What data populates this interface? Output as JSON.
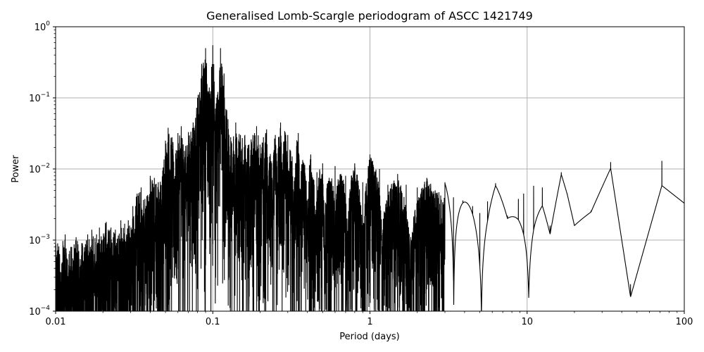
{
  "chart_data": {
    "type": "line",
    "title": "Generalised Lomb-Scargle periodogram of ASCC 1421749",
    "xlabel": "Period (days)",
    "ylabel": "Power",
    "xscale": "log",
    "yscale": "log",
    "xlim": [
      0.01,
      100
    ],
    "ylim": [
      0.0001,
      1
    ],
    "grid": true,
    "line_color": "#000000",
    "x_ticks": [
      {
        "value": 0.01,
        "label": "0.01"
      },
      {
        "value": 0.1,
        "label": "0.1"
      },
      {
        "value": 1,
        "label": "1"
      },
      {
        "value": 10,
        "label": "10"
      },
      {
        "value": 100,
        "label": "100"
      }
    ],
    "y_ticks": [
      {
        "value": 0.0001,
        "base": "10",
        "exp": "−4"
      },
      {
        "value": 0.001,
        "base": "10",
        "exp": "−3"
      },
      {
        "value": 0.01,
        "base": "10",
        "exp": "−2"
      },
      {
        "value": 0.1,
        "base": "10",
        "exp": "−1"
      },
      {
        "value": 1,
        "base": "10",
        "exp": "0"
      }
    ],
    "peaks": [
      [
        0.0103,
        0.0009
      ],
      [
        0.0115,
        0.0012
      ],
      [
        0.0125,
        0.0008
      ],
      [
        0.0135,
        0.0011
      ],
      [
        0.0148,
        0.0009
      ],
      [
        0.016,
        0.0012
      ],
      [
        0.017,
        0.0014
      ],
      [
        0.019,
        0.0015
      ],
      [
        0.021,
        0.0018
      ],
      [
        0.0225,
        0.0015
      ],
      [
        0.024,
        0.0014
      ],
      [
        0.026,
        0.0019
      ],
      [
        0.0275,
        0.0017
      ],
      [
        0.029,
        0.0019
      ],
      [
        0.031,
        0.003
      ],
      [
        0.033,
        0.0045
      ],
      [
        0.035,
        0.0055
      ],
      [
        0.037,
        0.0038
      ],
      [
        0.04,
        0.008
      ],
      [
        0.0425,
        0.0075
      ],
      [
        0.045,
        0.0065
      ],
      [
        0.048,
        0.0095
      ],
      [
        0.05,
        0.025
      ],
      [
        0.052,
        0.038
      ],
      [
        0.055,
        0.028
      ],
      [
        0.058,
        0.0165
      ],
      [
        0.06,
        0.032
      ],
      [
        0.063,
        0.04
      ],
      [
        0.066,
        0.018
      ],
      [
        0.07,
        0.033
      ],
      [
        0.075,
        0.045
      ],
      [
        0.08,
        0.1
      ],
      [
        0.085,
        0.3
      ],
      [
        0.09,
        0.5
      ],
      [
        0.095,
        0.14
      ],
      [
        0.1,
        0.55
      ],
      [
        0.106,
        0.1
      ],
      [
        0.112,
        0.5
      ],
      [
        0.118,
        0.22
      ],
      [
        0.125,
        0.05
      ],
      [
        0.13,
        0.028
      ],
      [
        0.14,
        0.045
      ],
      [
        0.15,
        0.03
      ],
      [
        0.16,
        0.03
      ],
      [
        0.17,
        0.022
      ],
      [
        0.18,
        0.03
      ],
      [
        0.19,
        0.04
      ],
      [
        0.2,
        0.022
      ],
      [
        0.21,
        0.028
      ],
      [
        0.22,
        0.036
      ],
      [
        0.23,
        0.015
      ],
      [
        0.25,
        0.03
      ],
      [
        0.27,
        0.045
      ],
      [
        0.3,
        0.03
      ],
      [
        0.32,
        0.015
      ],
      [
        0.35,
        0.032
      ],
      [
        0.38,
        0.012
      ],
      [
        0.42,
        0.016
      ],
      [
        0.46,
        0.009
      ],
      [
        0.5,
        0.012
      ],
      [
        0.55,
        0.0075
      ],
      [
        0.6,
        0.011
      ],
      [
        0.7,
        0.008
      ],
      [
        0.8,
        0.012
      ],
      [
        0.9,
        0.0065
      ],
      [
        1.0,
        0.016
      ],
      [
        1.15,
        0.01
      ],
      [
        1.3,
        0.006
      ],
      [
        1.5,
        0.0085
      ],
      [
        1.7,
        0.006
      ],
      [
        2.0,
        0.0055
      ],
      [
        2.3,
        0.0075
      ],
      [
        2.6,
        0.005
      ],
      [
        3.0,
        0.0065
      ],
      [
        3.4,
        0.004
      ],
      [
        3.9,
        0.0036
      ],
      [
        4.5,
        0.003
      ],
      [
        5.0,
        0.0024
      ],
      [
        5.6,
        0.0035
      ],
      [
        6.3,
        0.0063
      ],
      [
        7.5,
        0.0022
      ],
      [
        8.8,
        0.0038
      ],
      [
        9.5,
        0.0045
      ],
      [
        11.0,
        0.0058
      ],
      [
        12.5,
        0.0055
      ],
      [
        14.0,
        0.0016
      ],
      [
        16.5,
        0.009
      ],
      [
        18.0,
        0.0045
      ],
      [
        20.0,
        0.0016
      ],
      [
        25.5,
        0.0026
      ],
      [
        34.0,
        0.0125
      ],
      [
        45.5,
        0.00024
      ],
      [
        72.0,
        0.013
      ],
      [
        100.0,
        0.0098
      ]
    ]
  }
}
